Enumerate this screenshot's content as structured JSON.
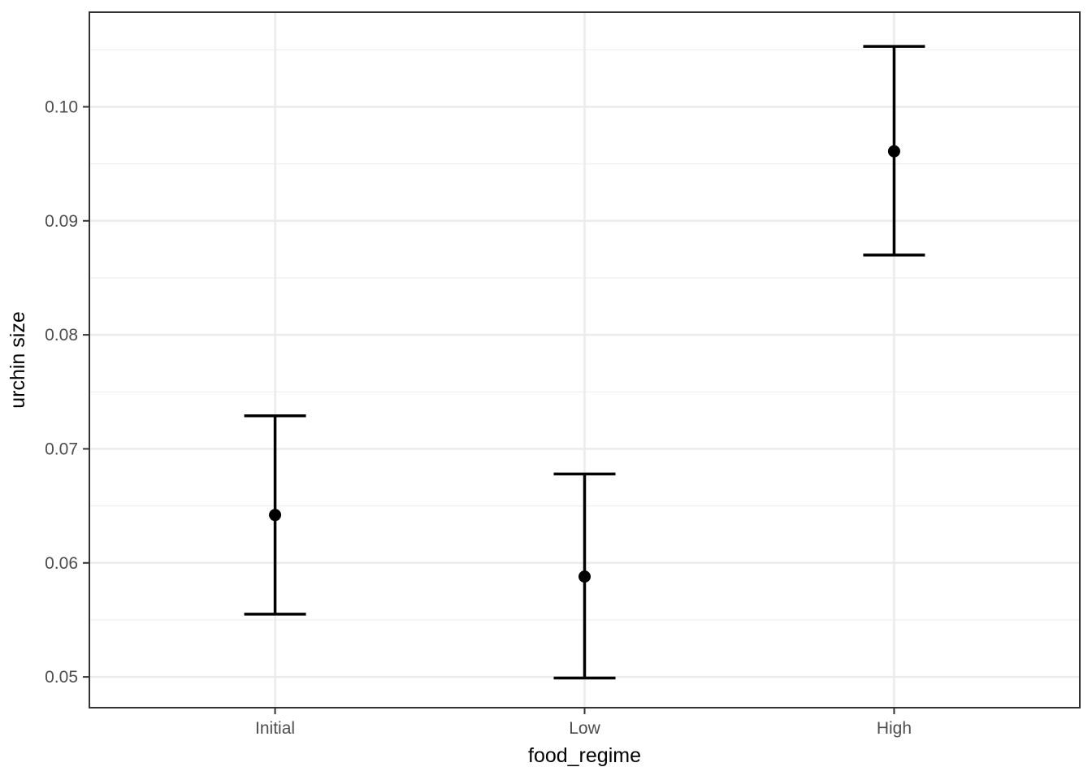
{
  "chart_data": {
    "type": "pointrange",
    "title": "",
    "xlabel": "food_regime",
    "ylabel": "urchin size",
    "categories": [
      "Initial",
      "Low",
      "High"
    ],
    "points": [
      {
        "category": "Initial",
        "pred": 0.0642,
        "lower": 0.0555,
        "upper": 0.0729
      },
      {
        "category": "Low",
        "pred": 0.0588,
        "lower": 0.0499,
        "upper": 0.0678
      },
      {
        "category": "High",
        "pred": 0.0961,
        "lower": 0.087,
        "upper": 0.1053
      }
    ],
    "y_axis": {
      "ticks": [
        0.05,
        0.06,
        0.07,
        0.08,
        0.09,
        0.1
      ],
      "tick_labels": [
        "0.05",
        "0.06",
        "0.07",
        "0.08",
        "0.09",
        "0.10"
      ],
      "minor_ticks": [
        0.055,
        0.065,
        0.075,
        0.085,
        0.095,
        0.105
      ],
      "range": [
        0.0473,
        0.1083
      ]
    },
    "x_axis": {
      "positions": [
        0.1875,
        0.5,
        0.8125
      ]
    },
    "grid": {
      "horizontal_major": true,
      "horizontal_minor": true,
      "vertical_major": true,
      "vertical_minor": false
    },
    "legend": "none"
  },
  "style": {
    "background": "#FFFFFF",
    "panel_background": "#FFFFFF",
    "panel_border": "#333333",
    "grid_major": "#EBEBEB",
    "grid_minor": "#F1F1F1",
    "tick_color": "#333333",
    "tick_label_color": "#4D4D4D",
    "axis_title_color": "#000000",
    "point_color": "#000000",
    "errorbar_color": "#000000"
  }
}
